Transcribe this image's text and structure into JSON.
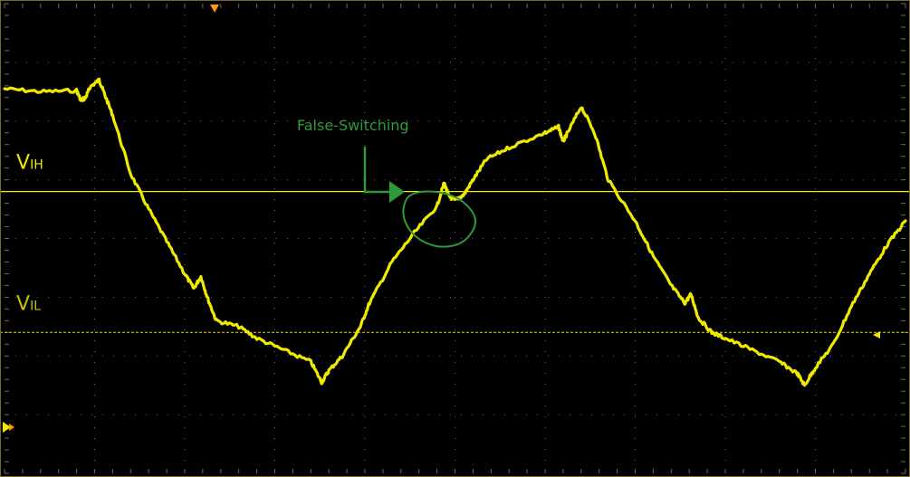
{
  "chart_data": {
    "type": "line",
    "title": "",
    "xlabel": "",
    "ylabel": "",
    "grid": true,
    "xlim": [
      0,
      10
    ],
    "ylim": [
      -4,
      4
    ],
    "series": [
      {
        "color": "#f0ea00",
        "points": [
          [
            0.0,
            2.55
          ],
          [
            0.4,
            2.5
          ],
          [
            0.8,
            2.52
          ],
          [
            0.85,
            2.35
          ],
          [
            0.9,
            2.4
          ],
          [
            0.95,
            2.58
          ],
          [
            1.05,
            2.7
          ],
          [
            1.1,
            2.5
          ],
          [
            1.2,
            2.1
          ],
          [
            1.4,
            1.1
          ],
          [
            1.6,
            0.5
          ],
          [
            1.8,
            -0.05
          ],
          [
            2.0,
            -0.6
          ],
          [
            2.1,
            -0.85
          ],
          [
            2.18,
            -0.65
          ],
          [
            2.25,
            -1.0
          ],
          [
            2.35,
            -1.4
          ],
          [
            2.6,
            -1.5
          ],
          [
            2.8,
            -1.7
          ],
          [
            3.1,
            -1.9
          ],
          [
            3.4,
            -2.1
          ],
          [
            3.52,
            -2.45
          ],
          [
            3.6,
            -2.25
          ],
          [
            3.75,
            -2.0
          ],
          [
            3.95,
            -1.5
          ],
          [
            4.05,
            -1.1
          ],
          [
            4.3,
            -0.4
          ],
          [
            4.55,
            0.1
          ],
          [
            4.8,
            0.55
          ],
          [
            4.88,
            0.95
          ],
          [
            4.93,
            0.72
          ],
          [
            5.0,
            0.65
          ],
          [
            5.1,
            0.75
          ],
          [
            5.2,
            1.0
          ],
          [
            5.35,
            1.35
          ],
          [
            5.6,
            1.55
          ],
          [
            6.0,
            1.8
          ],
          [
            6.15,
            1.9
          ],
          [
            6.2,
            1.65
          ],
          [
            6.25,
            1.8
          ],
          [
            6.4,
            2.25
          ],
          [
            6.55,
            1.8
          ],
          [
            6.7,
            1.0
          ],
          [
            7.0,
            0.3
          ],
          [
            7.2,
            -0.3
          ],
          [
            7.4,
            -0.8
          ],
          [
            7.55,
            -1.1
          ],
          [
            7.62,
            -0.95
          ],
          [
            7.7,
            -1.35
          ],
          [
            7.85,
            -1.6
          ],
          [
            8.0,
            -1.7
          ],
          [
            8.3,
            -1.9
          ],
          [
            8.6,
            -2.1
          ],
          [
            8.8,
            -2.3
          ],
          [
            8.88,
            -2.5
          ],
          [
            9.0,
            -2.2
          ],
          [
            9.2,
            -1.8
          ],
          [
            9.4,
            -1.15
          ],
          [
            9.6,
            -0.6
          ],
          [
            9.8,
            -0.1
          ],
          [
            10.0,
            0.3
          ]
        ]
      }
    ],
    "thresholds": [
      {
        "label_main": "V",
        "label_sub": "IH",
        "y": 0.8,
        "style": "solid",
        "color": "#f0ea00"
      },
      {
        "label_main": "V",
        "label_sub": "IL",
        "y": -1.6,
        "style": "dashed",
        "color": "#c9c200"
      }
    ],
    "annotations": [
      {
        "text": "False-Switching",
        "color": "#2e9b3a",
        "x": 4.88,
        "y": 0.9
      }
    ],
    "markers": {
      "trigger_color": "#ff9900",
      "ground_color": "#f0ea00"
    },
    "colors": {
      "background": "#000000",
      "grid": "#6a6a6a",
      "frame": "#7a6a2a"
    }
  }
}
